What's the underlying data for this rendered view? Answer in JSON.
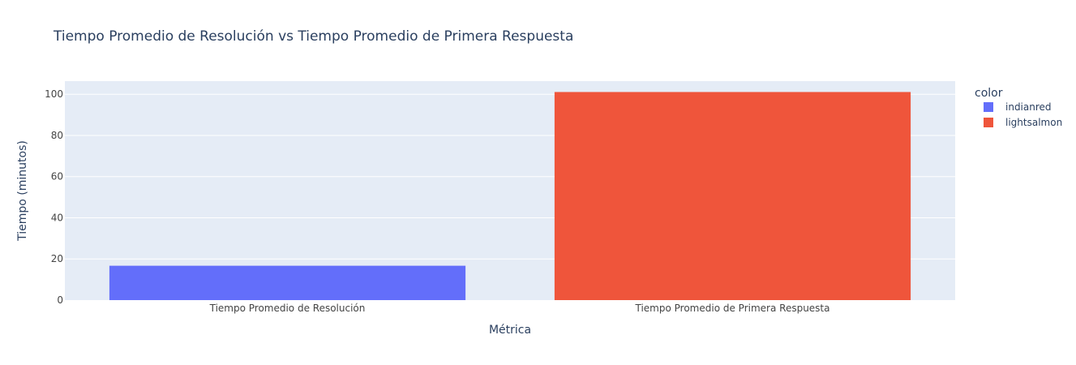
{
  "chart_data": {
    "type": "bar",
    "title": "Tiempo Promedio de Resolución vs Tiempo Promedio de Primera Respuesta",
    "xlabel": "Métrica",
    "ylabel": "Tiempo (minutos)",
    "categories": [
      "Tiempo Promedio de Resolución",
      "Tiempo Promedio de Primera Respuesta"
    ],
    "values": [
      16.7,
      101.1
    ],
    "bar_colors": [
      "#636efa",
      "#ef553b"
    ],
    "ylim": [
      0,
      106.4
    ],
    "yticks": [
      0,
      20,
      40,
      60,
      80,
      100
    ],
    "grid": true,
    "legend": {
      "title": "color",
      "placement": "right",
      "entries": [
        {
          "name": "indianred",
          "color": "#636efa"
        },
        {
          "name": "lightsalmon",
          "color": "#ef553b"
        }
      ]
    },
    "colors": {
      "plot_background": "#e5ecf6",
      "grid": "#ffffff",
      "text": "#2a3f5f",
      "tick_text": "#444444"
    }
  }
}
